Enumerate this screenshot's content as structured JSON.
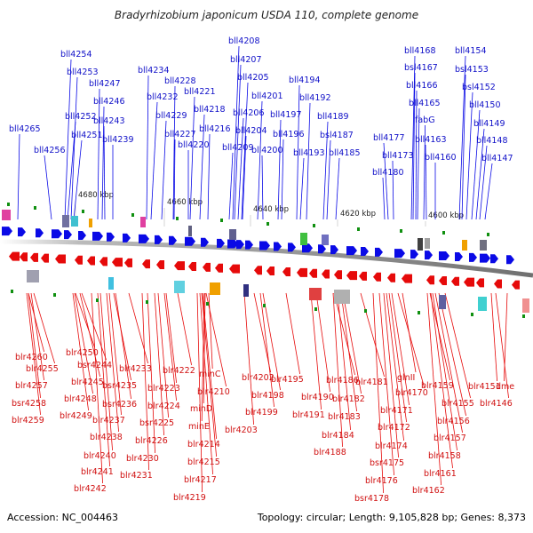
{
  "title": "Bradyrhizobium japonicum USDA 110, complete genome",
  "accession_label": "Accession: NC_004463",
  "summary_label": "Topology: circular; Length: 9,105,828 bp; Genes: 8,373",
  "colors": {
    "top_genes": "#0a0ae6",
    "bottom_genes": "#e60a0a",
    "top_label": "#1010c8",
    "bottom_label": "#d01010",
    "backbone": "#808080"
  },
  "scale_ticks": [
    "4680 kbp",
    "4660 kbp",
    "4640 kbp",
    "4620 kbp",
    "4600 kbp"
  ],
  "top_genes": [
    "bll4265",
    "bll4256",
    "bll4254",
    "bll4253",
    "bll4252",
    "bll4251",
    "bll4247",
    "bll4246",
    "bll4243",
    "bll4239",
    "bll4234",
    "bll4232",
    "bll4229",
    "bll4228",
    "bll4227",
    "bll4221",
    "bll4220",
    "bll4218",
    "bll4216",
    "bll4209",
    "bll4208",
    "bll4207",
    "bll4206",
    "bll4205",
    "bll4204",
    "bll4201",
    "bll4200",
    "bll4197",
    "bll4196",
    "bll4194",
    "bll4193",
    "bll4192",
    "bll4189",
    "bsl4187",
    "bll4185",
    "bll4180",
    "bll4177",
    "bll4173",
    "bll4168",
    "bsl4167",
    "bll4166",
    "bll4165",
    "fabG",
    "bll4163",
    "bll4160",
    "bll4154",
    "bsl4153",
    "bsl4152",
    "bll4150",
    "bll4149",
    "bll4148",
    "bll4147"
  ],
  "bottom_genes": [
    "blr4260",
    "blr4255",
    "blr4257",
    "bsr4258",
    "blr4259",
    "blr4250",
    "bsr4244",
    "blr4245",
    "blr4248",
    "blr4249",
    "bsr4235",
    "blr4233",
    "bsr4236",
    "blr4237",
    "blr4238",
    "blr4240",
    "blr4241",
    "blr4242",
    "blr4222",
    "blr4223",
    "blr4224",
    "bsr4225",
    "blr4226",
    "blr4230",
    "blr4231",
    "minC",
    "blr4210",
    "minD",
    "minE",
    "blr4214",
    "blr4215",
    "blr4217",
    "blr4219",
    "blr4202",
    "blr4198",
    "blr4199",
    "blr4203",
    "blr4195",
    "blr4190",
    "blr4191",
    "blr4186",
    "blr4182",
    "blr4183",
    "blr4184",
    "blr4188",
    "blr4181",
    "glnII",
    "blr4170",
    "blr4171",
    "blr4172",
    "blr4174",
    "bsr4175",
    "blr4176",
    "bsr4178",
    "blr4159",
    "blr4155",
    "blr4156",
    "blr4157",
    "blr4158",
    "blr4161",
    "blr4162",
    "blr4151",
    "dme",
    "blr4146"
  ]
}
